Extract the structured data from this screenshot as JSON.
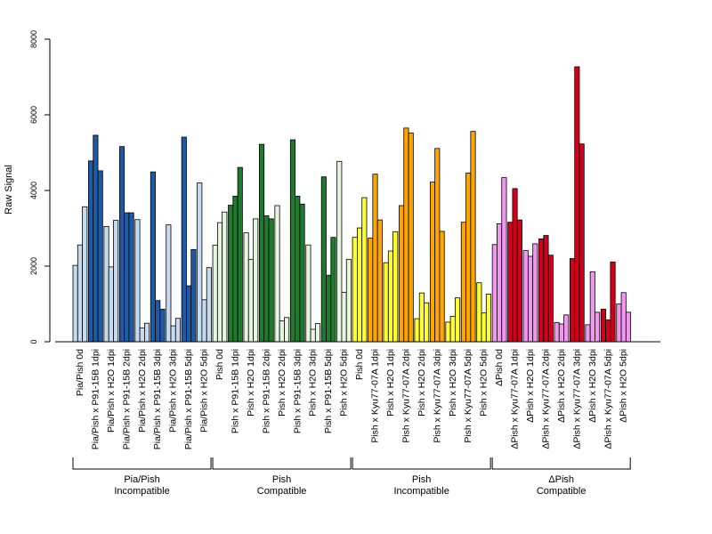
{
  "chart_data": {
    "type": "bar",
    "title": "",
    "xlabel": "",
    "ylabel": "Raw Signal",
    "ylim": [
      0,
      8000
    ],
    "yticks": [
      0,
      2000,
      4000,
      6000,
      8000
    ],
    "grid": false,
    "legend": "none",
    "categories": [
      "Pia/Pish 0d",
      "Pia/Pish x P91-15B 1dpi",
      "Pia/Pish x H2O 1dpi",
      "Pia/Pish x P91-15B 2dpi",
      "Pia/Pish x H2O 2dpi",
      "Pia/Pish x P91-15B 3dpi",
      "Pia/Pish x H2O 3dpi",
      "Pia/Pish x P91-15B 5dpi",
      "Pia/Pish x H2O 5dpi",
      "Pish 0d",
      "Pish x P91-15B 1dpi",
      "Pish x H2O 1dpi",
      "Pish x P91-15B 2dpi",
      "Pish x H2O 2dpi",
      "Pish x P91-15B 3dpi",
      "Pish x H2O 3dpi",
      "Pish x P91-15B 5dpi",
      "Pish x H2O 5dpi",
      "Pish 0d",
      "Pish x Kyu77-07A 1dpi",
      "Pish x H2O 1dpi",
      "Pish x Kyu77-07A 2dpi",
      "Pish x H2O 2dpi",
      "Pish x Kyu77-07A 3dpi",
      "Pish x H2O 3dpi",
      "Pish x Kyu77-07A 5dpi",
      "Pish x H2O 5dpi",
      "ΔPish 0d",
      "ΔPish x Kyu77-07A 1dpi",
      "ΔPish x H2O 1dpi",
      "ΔPish x Kyu77-07A 2dpi",
      "ΔPish x H2O 2dpi",
      "ΔPish x Kyu77-07A 3dpi",
      "ΔPish x H2O 3dpi",
      "ΔPish x Kyu77-07A 5dpi",
      "ΔPish x H2O 5dpi"
    ],
    "values": [
      [
        2020,
        2560,
        3570
      ],
      [
        4780,
        5460,
        4520
      ],
      [
        3050,
        1980,
        3210
      ],
      [
        5160,
        3410,
        3410
      ],
      [
        3230,
        370,
        490
      ],
      [
        4490,
        1090,
        860
      ],
      [
        3090,
        420,
        620
      ],
      [
        5410,
        1480,
        2440
      ],
      [
        4200,
        1110,
        1960
      ],
      [
        2550,
        3150,
        3430
      ],
      [
        3610,
        3850,
        4610
      ],
      [
        2880,
        2180,
        3250
      ],
      [
        5220,
        3330,
        3250
      ],
      [
        3600,
        550,
        640
      ],
      [
        5340,
        3850,
        3640
      ],
      [
        2560,
        330,
        480
      ],
      [
        4360,
        1760,
        2760
      ],
      [
        4770,
        1310,
        2180
      ],
      [
        2760,
        3010,
        3810
      ],
      [
        2740,
        4430,
        3220
      ],
      [
        2090,
        2400,
        2910
      ],
      [
        3600,
        5650,
        5520
      ],
      [
        610,
        1290,
        1030
      ],
      [
        4220,
        5110,
        2920
      ],
      [
        520,
        670,
        1160
      ],
      [
        3160,
        4460,
        5560
      ],
      [
        1560,
        760,
        1260
      ],
      [
        2570,
        3120,
        4340
      ],
      [
        3160,
        4050,
        3220
      ],
      [
        2410,
        2260,
        2590
      ],
      [
        2720,
        2810,
        2290
      ],
      [
        510,
        470,
        710
      ],
      [
        2200,
        7270,
        5230
      ],
      [
        450,
        1850,
        780
      ],
      [
        860,
        580,
        2110
      ],
      [
        1000,
        1300,
        780
      ]
    ],
    "bar_colors": [
      "#c6dbef",
      "#1f5aa6",
      "#c6dbef",
      "#1f5aa6",
      "#c6dbef",
      "#1f5aa6",
      "#c6dbef",
      "#1f5aa6",
      "#c6dbef",
      "#e5f5e0",
      "#1e7a2e",
      "#e5f5e0",
      "#1e7a2e",
      "#e5f5e0",
      "#1e7a2e",
      "#e5f5e0",
      "#1e7a2e",
      "#e5f5e0",
      "#ffff33",
      "#ffa500",
      "#ffff33",
      "#ffa500",
      "#ffff33",
      "#ffa500",
      "#ffff33",
      "#ffa500",
      "#ffff33",
      "#ee99ee",
      "#d0021b",
      "#ee99ee",
      "#d0021b",
      "#ee99ee",
      "#d0021b",
      "#ee99ee",
      "#d0021b",
      "#ee99ee"
    ],
    "groups": [
      {
        "line1": "Pia/Pish",
        "line2": "Incompatible"
      },
      {
        "line1": "Pish",
        "line2": "Compatible"
      },
      {
        "line1": "Pish",
        "line2": "Incompatible"
      },
      {
        "line1": "ΔPish",
        "line2": "Compatible"
      }
    ]
  }
}
